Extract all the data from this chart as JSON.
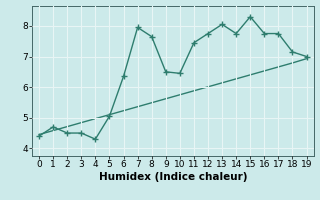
{
  "x": [
    0,
    1,
    2,
    3,
    4,
    5,
    6,
    7,
    8,
    9,
    10,
    11,
    12,
    13,
    14,
    15,
    16,
    17,
    18,
    19
  ],
  "y_curve": [
    4.4,
    4.7,
    4.5,
    4.5,
    4.3,
    5.05,
    6.35,
    7.95,
    7.65,
    6.5,
    6.45,
    7.45,
    7.75,
    8.05,
    7.75,
    8.3,
    7.75,
    7.75,
    7.15,
    7.0
  ],
  "y_trend": [
    4.45,
    4.58,
    4.71,
    4.84,
    4.97,
    5.1,
    5.23,
    5.36,
    5.49,
    5.62,
    5.75,
    5.88,
    6.01,
    6.14,
    6.27,
    6.4,
    6.53,
    6.66,
    6.79,
    6.93
  ],
  "line_color": "#2e7d6e",
  "bg_color": "#cceaea",
  "grid_color": "#e8f5f5",
  "xlabel": "Humidex (Indice chaleur)",
  "xlim": [
    -0.5,
    19.5
  ],
  "ylim": [
    3.75,
    8.65
  ],
  "yticks": [
    4,
    5,
    6,
    7,
    8
  ],
  "xticks": [
    0,
    1,
    2,
    3,
    4,
    5,
    6,
    7,
    8,
    9,
    10,
    11,
    12,
    13,
    14,
    15,
    16,
    17,
    18,
    19
  ],
  "marker_size": 4,
  "linewidth": 1.0,
  "tick_fontsize": 6.5,
  "xlabel_fontsize": 7.5
}
